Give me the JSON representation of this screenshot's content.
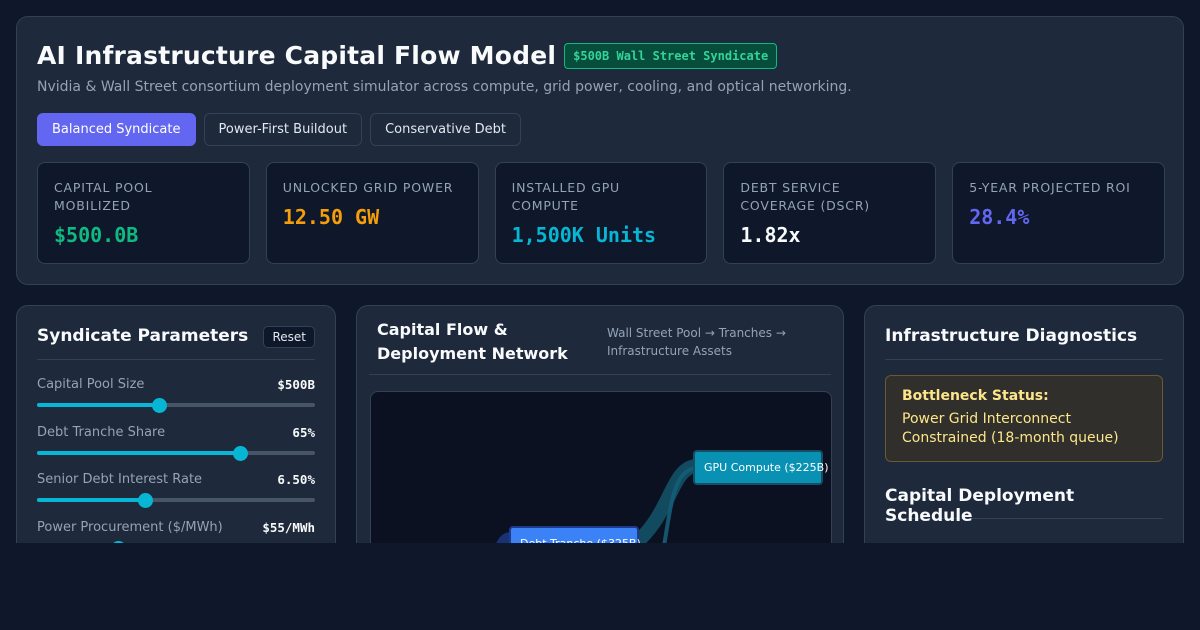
{
  "header": {
    "title": "AI Infrastructure Capital Flow Model",
    "badge": "$500B Wall Street Syndicate",
    "subtitle": "Nvidia & Wall Street consortium deployment simulator across compute, grid power, cooling, and optical networking."
  },
  "presets": [
    "Balanced Syndicate",
    "Power-First Buildout",
    "Conservative Debt"
  ],
  "kpis": [
    {
      "label": "CAPITAL POOL MOBILIZED",
      "value": "$500.0B",
      "color": "#10b981"
    },
    {
      "label": "UNLOCKED GRID POWER",
      "value": "12.50 GW",
      "color": "#f59e0b"
    },
    {
      "label": "INSTALLED GPU COMPUTE",
      "value": "1,500K Units",
      "color": "#06b6d4"
    },
    {
      "label": "DEBT SERVICE COVERAGE (DSCR)",
      "value": "1.82x",
      "color": "#f8fafc"
    },
    {
      "label": "5-YEAR PROJECTED ROI",
      "value": "28.4%",
      "color": "#6366f1"
    }
  ],
  "params_panel": {
    "title": "Syndicate Parameters",
    "reset_label": "Reset",
    "params": [
      {
        "label": "Capital Pool Size",
        "value": "$500B",
        "level": 0.44
      },
      {
        "label": "Debt Tranche Share",
        "value": "65%",
        "level": 0.73
      },
      {
        "label": "Senior Debt Interest Rate",
        "value": "6.50%",
        "level": 0.39
      },
      {
        "label": "Power Procurement ($/MWh)",
        "value": "$55/MWh",
        "level": 0.29
      }
    ]
  },
  "flow_panel": {
    "title": "Capital Flow & Deployment Network",
    "subtitle": "Wall Street Pool → Tranches → Infrastructure Assets",
    "nodes": {
      "gpu": "GPU Compute ($225B)",
      "debt": "Debt Tranche ($325B)"
    }
  },
  "diagnostics": {
    "title": "Infrastructure Diagnostics",
    "bottleneck_title": "Bottleneck Status:",
    "bottleneck_text": "Power Grid Interconnect Constrained (18-month queue)",
    "schedule_title": "Capital Deployment Schedule"
  }
}
